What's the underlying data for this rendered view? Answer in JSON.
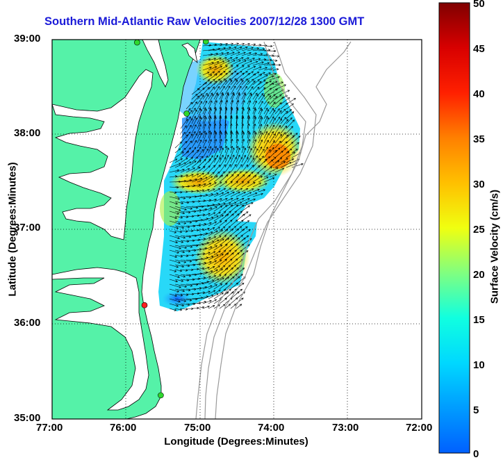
{
  "title": "Southern Mid-Atlantic Raw Velocities 2007/12/28 1300 GMT",
  "axes": {
    "xlabel": "Longitude (Degrees:Minutes)",
    "ylabel": "Latitude (Degrees:Minutes)",
    "xticks": [
      "77:00",
      "76:00",
      "75:00",
      "74:00",
      "73:00",
      "72:00"
    ],
    "yticks": [
      "39:00",
      "38:00",
      "37:00",
      "36:00",
      "35:00"
    ]
  },
  "colorbar": {
    "label": "Surface Velocity (cm/s)",
    "ticks": [
      "50",
      "45",
      "40",
      "35",
      "30",
      "25",
      "20",
      "15",
      "10",
      "5",
      "0"
    ],
    "min": 0,
    "max": 50
  },
  "colors": {
    "land": "#55f2a8",
    "title": "#1a1ad8",
    "station_ok": "#2ed82e",
    "station_off": "#ff2020"
  },
  "map_extent": {
    "lon": [
      -77,
      -72
    ],
    "lat": [
      35,
      39
    ]
  },
  "stations": [
    {
      "lon": -74.92,
      "lat": 38.98,
      "status": "ok"
    },
    {
      "lon": -75.85,
      "lat": 38.97,
      "status": "ok"
    },
    {
      "lon": -75.18,
      "lat": 38.22,
      "status": "ok"
    },
    {
      "lon": -75.75,
      "lat": 36.2,
      "status": "off"
    },
    {
      "lon": -75.53,
      "lat": 35.25,
      "status": "ok"
    }
  ]
}
